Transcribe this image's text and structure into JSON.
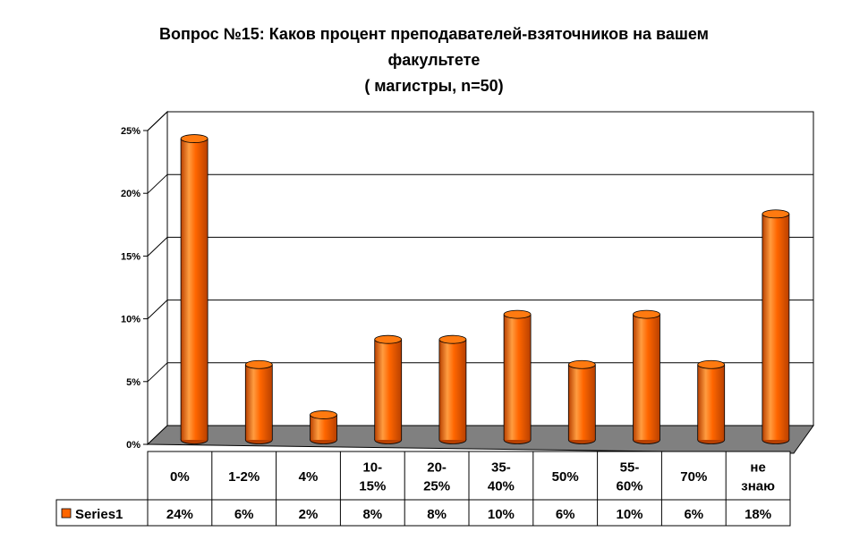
{
  "title_lines": [
    "Вопрос №15: Каков процент преподавателей-взяточников на вашем",
    "факультете",
    "( магистры, n=50)"
  ],
  "chart_data": {
    "type": "bar",
    "style": "3d-cylinder",
    "categories": [
      [
        "0%"
      ],
      [
        "1-2%"
      ],
      [
        "4%"
      ],
      [
        "10-",
        "15%"
      ],
      [
        "20-",
        "25%"
      ],
      [
        "35-",
        "40%"
      ],
      [
        "50%"
      ],
      [
        "55-",
        "60%"
      ],
      [
        "70%"
      ],
      [
        "не",
        "знаю"
      ]
    ],
    "series": [
      {
        "name": "Series1",
        "values": [
          24,
          6,
          2,
          8,
          8,
          10,
          6,
          10,
          6,
          18
        ],
        "labels": [
          "24%",
          "6%",
          "2%",
          "8%",
          "8%",
          "10%",
          "6%",
          "10%",
          "6%",
          "18%"
        ]
      }
    ],
    "y_ticks": [
      "0%",
      "5%",
      "10%",
      "15%",
      "20%",
      "25%"
    ],
    "ylim": [
      0,
      25
    ],
    "grid": true,
    "data_table": true,
    "colors": {
      "bar": "#ff6600",
      "bar_dark": "#b84000",
      "bar_light": "#ff9c40",
      "bar_top": "#ff7a10",
      "floor": "#808080",
      "grid": "#000000"
    }
  }
}
